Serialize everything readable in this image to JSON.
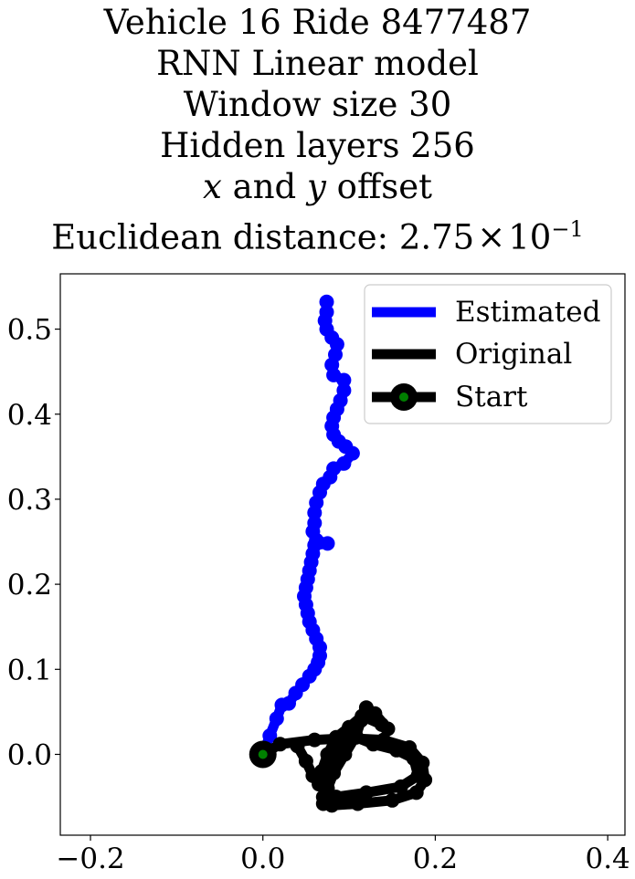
{
  "title": {
    "line1": "Vehicle 16 Ride 8477487",
    "line2": "RNN Linear model",
    "line3": "Window size 30",
    "line4": "Hidden layers 256",
    "line5_x": "x",
    "line5_mid": " and ",
    "line5_y": "y",
    "line5_end": " offset",
    "line6_prefix": "Euclidean distance: 2.75",
    "line6_times": "×",
    "line6_base": "10",
    "line6_exp": "−1"
  },
  "chart_data": {
    "type": "line",
    "title": "Vehicle 16 Ride 8477487 RNN Linear model Window size 30 Hidden layers 256 x and y offset Euclidean distance: 2.75×10^-1",
    "xlabel": "",
    "ylabel": "",
    "xlim": [
      -0.235,
      0.42
    ],
    "ylim": [
      -0.095,
      0.565
    ],
    "xticks": [
      -0.2,
      0.0,
      0.2,
      0.4
    ],
    "xtick_labels": [
      "−0.2",
      "0.0",
      "0.2",
      "0.4"
    ],
    "yticks": [
      0.0,
      0.1,
      0.2,
      0.3,
      0.4,
      0.5
    ],
    "ytick_labels": [
      "0.0",
      "0.1",
      "0.2",
      "0.3",
      "0.4",
      "0.5"
    ],
    "grid": false,
    "legend_position": "top-right",
    "series": [
      {
        "name": "Estimated",
        "color": "#0000ff",
        "points": [
          [
            0.0,
            0.0
          ],
          [
            0.008,
            0.022
          ],
          [
            0.016,
            0.042
          ],
          [
            0.022,
            0.058
          ],
          [
            0.03,
            0.06
          ],
          [
            0.038,
            0.072
          ],
          [
            0.046,
            0.082
          ],
          [
            0.054,
            0.092
          ],
          [
            0.06,
            0.1
          ],
          [
            0.064,
            0.108
          ],
          [
            0.066,
            0.116
          ],
          [
            0.066,
            0.126
          ],
          [
            0.062,
            0.136
          ],
          [
            0.058,
            0.146
          ],
          [
            0.054,
            0.156
          ],
          [
            0.052,
            0.166
          ],
          [
            0.05,
            0.176
          ],
          [
            0.048,
            0.186
          ],
          [
            0.05,
            0.196
          ],
          [
            0.052,
            0.206
          ],
          [
            0.054,
            0.216
          ],
          [
            0.056,
            0.226
          ],
          [
            0.058,
            0.236
          ],
          [
            0.06,
            0.246
          ],
          [
            0.075,
            0.248
          ],
          [
            0.062,
            0.252
          ],
          [
            0.058,
            0.262
          ],
          [
            0.06,
            0.272
          ],
          [
            0.06,
            0.284
          ],
          [
            0.062,
            0.296
          ],
          [
            0.066,
            0.308
          ],
          [
            0.07,
            0.318
          ],
          [
            0.078,
            0.326
          ],
          [
            0.082,
            0.336
          ],
          [
            0.094,
            0.342
          ],
          [
            0.104,
            0.354
          ],
          [
            0.096,
            0.362
          ],
          [
            0.088,
            0.368
          ],
          [
            0.082,
            0.376
          ],
          [
            0.08,
            0.386
          ],
          [
            0.082,
            0.396
          ],
          [
            0.086,
            0.406
          ],
          [
            0.09,
            0.416
          ],
          [
            0.094,
            0.428
          ],
          [
            0.094,
            0.44
          ],
          [
            0.082,
            0.446
          ],
          [
            0.08,
            0.458
          ],
          [
            0.084,
            0.47
          ],
          [
            0.086,
            0.482
          ],
          [
            0.08,
            0.49
          ],
          [
            0.074,
            0.5
          ],
          [
            0.072,
            0.51
          ],
          [
            0.074,
            0.52
          ],
          [
            0.074,
            0.532
          ]
        ]
      },
      {
        "name": "Original",
        "color": "#000000",
        "points": [
          [
            0.0,
            0.0
          ],
          [
            0.02,
            0.012
          ],
          [
            0.06,
            0.017
          ],
          [
            0.1,
            0.019
          ],
          [
            0.14,
            0.017
          ],
          [
            0.17,
            0.008
          ],
          [
            0.185,
            -0.01
          ],
          [
            0.188,
            -0.03
          ],
          [
            0.178,
            -0.045
          ],
          [
            0.15,
            -0.054
          ],
          [
            0.11,
            -0.058
          ],
          [
            0.08,
            -0.06
          ],
          [
            0.07,
            -0.058
          ],
          [
            0.085,
            -0.05
          ],
          [
            0.12,
            -0.045
          ],
          [
            0.16,
            -0.038
          ],
          [
            0.18,
            -0.025
          ],
          [
            0.175,
            -0.005
          ],
          [
            0.155,
            0.005
          ],
          [
            0.128,
            0.012
          ],
          [
            0.108,
            0.02
          ],
          [
            0.09,
            0.005
          ],
          [
            0.078,
            -0.018
          ],
          [
            0.072,
            -0.035
          ],
          [
            0.07,
            -0.05
          ],
          [
            0.075,
            -0.04
          ],
          [
            0.082,
            -0.022
          ],
          [
            0.095,
            0.0
          ],
          [
            0.108,
            0.022
          ],
          [
            0.114,
            0.04
          ],
          [
            0.12,
            0.055
          ],
          [
            0.13,
            0.048
          ],
          [
            0.145,
            0.03
          ],
          [
            0.138,
            0.035
          ],
          [
            0.115,
            0.045
          ],
          [
            0.1,
            0.032
          ],
          [
            0.085,
            0.02
          ],
          [
            0.075,
            0.0
          ],
          [
            0.068,
            -0.02
          ],
          [
            0.065,
            -0.035
          ],
          [
            0.058,
            -0.025
          ],
          [
            0.05,
            -0.008
          ],
          [
            0.04,
            0.01
          ]
        ]
      },
      {
        "name": "Start",
        "color": "#000000",
        "marker_color": "#008000",
        "points": [
          [
            0.0,
            0.0
          ]
        ]
      }
    ]
  }
}
